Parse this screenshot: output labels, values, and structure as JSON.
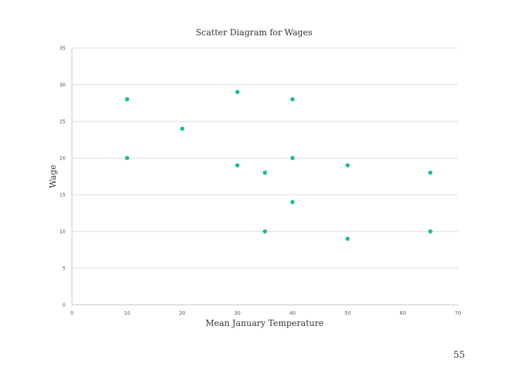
{
  "chart_data": {
    "type": "scatter",
    "title": "Scatter Diagram for Wages",
    "xlabel": "Mean January Temperature",
    "ylabel": "Wage",
    "xlim": [
      0,
      70
    ],
    "ylim": [
      0,
      35
    ],
    "xticks": [
      0,
      10,
      20,
      30,
      40,
      50,
      60,
      70
    ],
    "yticks": [
      0,
      5,
      10,
      15,
      20,
      25,
      30,
      35
    ],
    "grid": true,
    "point_color": "#1abc9c",
    "points": [
      {
        "x": 10,
        "y": 28
      },
      {
        "x": 10,
        "y": 20
      },
      {
        "x": 20,
        "y": 24
      },
      {
        "x": 30,
        "y": 29
      },
      {
        "x": 30,
        "y": 19
      },
      {
        "x": 35,
        "y": 18
      },
      {
        "x": 35,
        "y": 10
      },
      {
        "x": 40,
        "y": 28
      },
      {
        "x": 40,
        "y": 20
      },
      {
        "x": 40,
        "y": 14
      },
      {
        "x": 50,
        "y": 19
      },
      {
        "x": 50,
        "y": 9
      },
      {
        "x": 65,
        "y": 18
      },
      {
        "x": 65,
        "y": 10
      }
    ]
  },
  "page": {
    "number": "55"
  }
}
